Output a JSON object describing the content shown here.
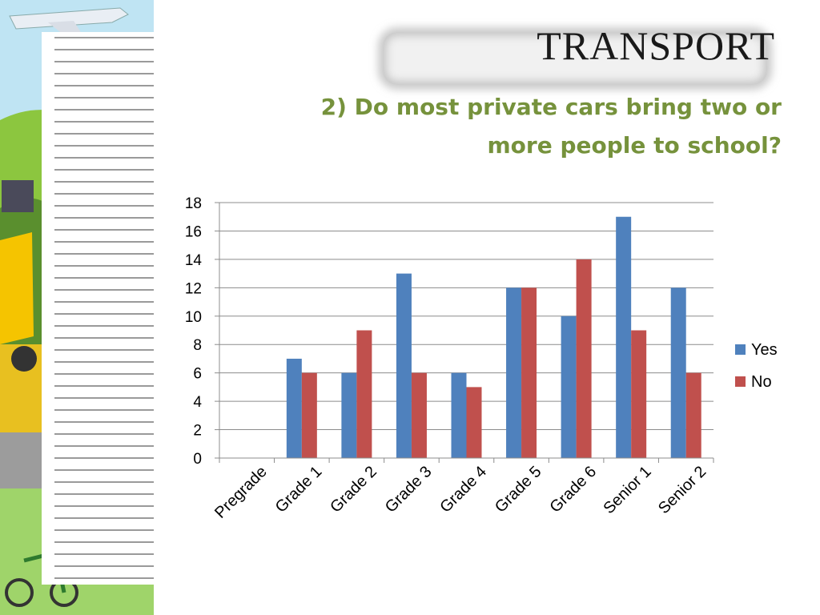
{
  "slide": {
    "title": "TRANSPORT",
    "subtitle_line1": "2) Do most private cars bring two or",
    "subtitle_line2": "more people to school?"
  },
  "colors": {
    "yes": "#4f81bd",
    "no": "#c0504d",
    "subtitle": "#76923c"
  },
  "chart_data": {
    "type": "bar",
    "categories": [
      "Pregrade",
      "Grade 1",
      "Grade 2",
      "Grade 3",
      "Grade 4",
      "Grade 5",
      "Grade 6",
      "Senior 1",
      "Senior 2"
    ],
    "series": [
      {
        "name": "Yes",
        "values": [
          0,
          7,
          6,
          13,
          6,
          12,
          10,
          17,
          12
        ]
      },
      {
        "name": "No",
        "values": [
          0,
          6,
          9,
          6,
          5,
          12,
          14,
          9,
          6
        ]
      }
    ],
    "yticks": [
      0,
      2,
      4,
      6,
      8,
      10,
      12,
      14,
      16,
      18
    ],
    "ylim": [
      0,
      18
    ],
    "grid": true,
    "legend": "right",
    "title": "",
    "xlabel": "",
    "ylabel": ""
  }
}
